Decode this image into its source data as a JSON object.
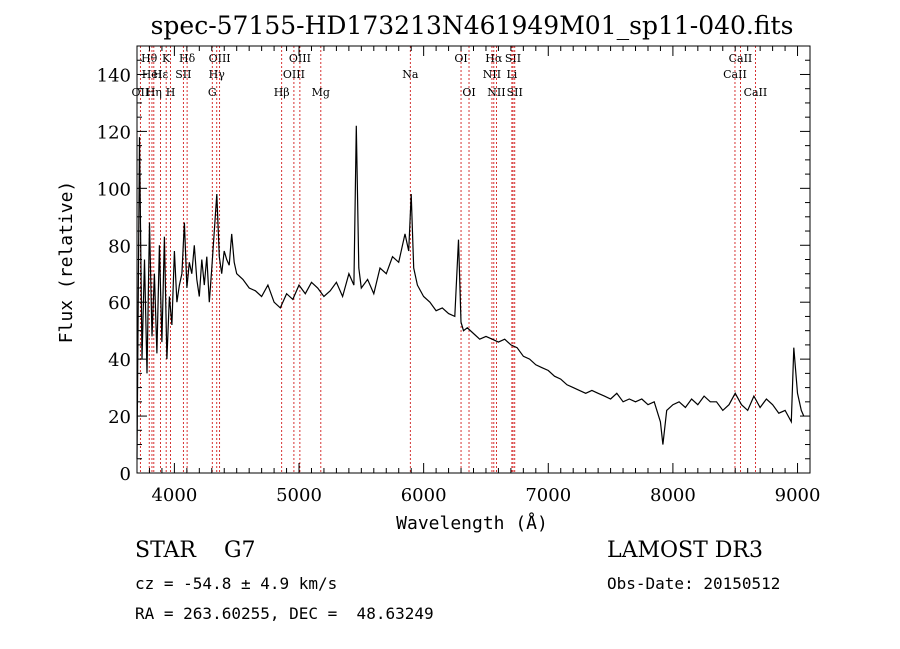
{
  "chart_data": {
    "type": "line",
    "title": "spec-57155-HD173213N461949M01_sp11-040.fits",
    "xlabel": "Wavelength (Å)",
    "ylabel": "Flux (relative)",
    "xlim": [
      3700,
      9100
    ],
    "ylim": [
      0,
      150
    ],
    "x_ticks": [
      4000,
      5000,
      6000,
      7000,
      8000,
      9000
    ],
    "y_ticks": [
      0,
      20,
      40,
      60,
      80,
      100,
      120,
      140
    ],
    "grid": false,
    "line_color": "#000000",
    "marker_color": "#cc0000",
    "series": [
      {
        "x": [
          3700,
          3720,
          3740,
          3760,
          3780,
          3800,
          3820,
          3840,
          3860,
          3880,
          3900,
          3920,
          3940,
          3960,
          3980,
          4000,
          4020,
          4040,
          4060,
          4080,
          4100,
          4120,
          4140,
          4160,
          4180,
          4200,
          4220,
          4240,
          4260,
          4280,
          4300,
          4320,
          4340,
          4360,
          4380,
          4400,
          4420,
          4440,
          4460,
          4480,
          4500,
          4550,
          4600,
          4650,
          4700,
          4750,
          4800,
          4850,
          4900,
          4950,
          5000,
          5050,
          5100,
          5150,
          5200,
          5250,
          5300,
          5350,
          5400,
          5440,
          5460,
          5480,
          5500,
          5550,
          5600,
          5650,
          5700,
          5750,
          5800,
          5850,
          5880,
          5900,
          5920,
          5950,
          6000,
          6050,
          6100,
          6150,
          6200,
          6250,
          6280,
          6300,
          6320,
          6350,
          6400,
          6450,
          6500,
          6550,
          6600,
          6650,
          6700,
          6750,
          6800,
          6850,
          6900,
          6950,
          7000,
          7050,
          7100,
          7150,
          7200,
          7250,
          7300,
          7350,
          7400,
          7450,
          7500,
          7550,
          7600,
          7650,
          7700,
          7750,
          7800,
          7850,
          7900,
          7920,
          7950,
          8000,
          8050,
          8100,
          8150,
          8200,
          8250,
          8300,
          8350,
          8400,
          8450,
          8500,
          8550,
          8600,
          8650,
          8700,
          8750,
          8800,
          8850,
          8900,
          8950,
          8970,
          9000,
          9030,
          9050
        ],
        "y": [
          5,
          118,
          40,
          75,
          35,
          88,
          48,
          70,
          42,
          80,
          46,
          83,
          40,
          62,
          52,
          78,
          60,
          66,
          70,
          88,
          65,
          74,
          70,
          80,
          68,
          62,
          75,
          66,
          76,
          60,
          72,
          85,
          98,
          76,
          70,
          78,
          75,
          73,
          84,
          74,
          70,
          68,
          65,
          64,
          62,
          66,
          60,
          58,
          63,
          61,
          66,
          63,
          67,
          65,
          62,
          64,
          67,
          62,
          70,
          66,
          122,
          72,
          65,
          68,
          63,
          72,
          70,
          76,
          74,
          84,
          78,
          98,
          72,
          66,
          62,
          60,
          57,
          58,
          56,
          55,
          82,
          53,
          50,
          51,
          49,
          47,
          48,
          47,
          46,
          47,
          45,
          44,
          41,
          40,
          38,
          37,
          36,
          34,
          33,
          31,
          30,
          29,
          28,
          29,
          28,
          27,
          26,
          28,
          25,
          26,
          25,
          26,
          24,
          25,
          18,
          10,
          22,
          24,
          25,
          23,
          26,
          24,
          27,
          25,
          25,
          22,
          24,
          28,
          24,
          22,
          27,
          23,
          26,
          24,
          21,
          22,
          18,
          44,
          28,
          22,
          20
        ]
      }
    ],
    "lines": [
      {
        "label": "Hθ",
        "x": 3798,
        "row": 1
      },
      {
        "label": "OII",
        "x": 3727,
        "row": 3
      },
      {
        "label": "K",
        "x": 3934,
        "row": 1
      },
      {
        "label": "H",
        "x": 3969,
        "row": 3
      },
      {
        "label": "Hδ",
        "x": 4102,
        "row": 1
      },
      {
        "label": "Hε",
        "x": 3889,
        "row": 2
      },
      {
        "label": "HeI",
        "x": 3820,
        "row": 2
      },
      {
        "label": "Hη",
        "x": 3835,
        "row": 3
      },
      {
        "label": "SII",
        "x": 4072,
        "row": 2
      },
      {
        "label": "OIII",
        "x": 4363,
        "row": 1
      },
      {
        "label": "Hγ",
        "x": 4340,
        "row": 2
      },
      {
        "label": "G",
        "x": 4304,
        "row": 3
      },
      {
        "label": "OIII",
        "x": 4959,
        "row": 2
      },
      {
        "label": "OIII",
        "x": 5007,
        "row": 1
      },
      {
        "label": "Hβ",
        "x": 4861,
        "row": 3
      },
      {
        "label": "Mg",
        "x": 5175,
        "row": 3
      },
      {
        "label": "Na",
        "x": 5893,
        "row": 2
      },
      {
        "label": "OI",
        "x": 6300,
        "row": 1
      },
      {
        "label": "OI",
        "x": 6364,
        "row": 3
      },
      {
        "label": "Hα",
        "x": 6563,
        "row": 1
      },
      {
        "label": "NII",
        "x": 6548,
        "row": 2
      },
      {
        "label": "NII",
        "x": 6584,
        "row": 3
      },
      {
        "label": "SII",
        "x": 6717,
        "row": 1
      },
      {
        "label": "Li",
        "x": 6708,
        "row": 2
      },
      {
        "label": "SII",
        "x": 6731,
        "row": 3
      },
      {
        "label": "CaII",
        "x": 8542,
        "row": 1
      },
      {
        "label": "CaII",
        "x": 8498,
        "row": 2
      },
      {
        "label": "CaII",
        "x": 8662,
        "row": 3
      }
    ]
  },
  "info": {
    "classification": "STAR    G7",
    "survey": "LAMOST DR3",
    "cz": "cz = -54.8 ± 4.9 km/s",
    "obs_date": "Obs-Date: 20150512",
    "coords": "RA = 263.60255, DEC =  48.63249"
  }
}
